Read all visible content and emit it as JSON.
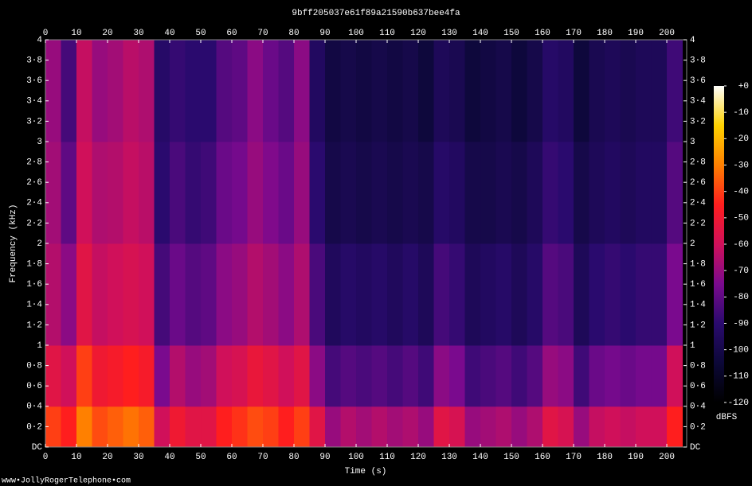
{
  "chart_data": {
    "type": "heatmap",
    "title": "9bff205037e61f89a21590b637bee4fa",
    "xlabel": "Time (s)",
    "ylabel": "Frequency (kHz)",
    "colorbar_label": "dBFS",
    "footer": "www•JollyRogerTelephone•com",
    "xlim": [
      0,
      206.4
    ],
    "ylim": [
      0,
      4
    ],
    "clim": [
      -120,
      0
    ],
    "xticks": [
      0,
      10,
      20,
      30,
      40,
      50,
      60,
      70,
      80,
      90,
      100,
      110,
      120,
      130,
      140,
      150,
      160,
      170,
      180,
      190,
      200
    ],
    "yticks": [
      {
        "value": 0,
        "label": "DC"
      },
      {
        "value": 0.2,
        "label": "0·2"
      },
      {
        "value": 0.4,
        "label": "0·4"
      },
      {
        "value": 0.6,
        "label": "0·6"
      },
      {
        "value": 0.8,
        "label": "0·8"
      },
      1,
      {
        "value": 1.2,
        "label": "1·2"
      },
      {
        "value": 1.4,
        "label": "1·4"
      },
      {
        "value": 1.6,
        "label": "1·6"
      },
      {
        "value": 1.8,
        "label": "1·8"
      },
      2,
      {
        "value": 2.2,
        "label": "2·2"
      },
      {
        "value": 2.4,
        "label": "2·4"
      },
      {
        "value": 2.6,
        "label": "2·6"
      },
      {
        "value": 2.8,
        "label": "2·8"
      },
      3,
      {
        "value": 3.2,
        "label": "3·2"
      },
      {
        "value": 3.4,
        "label": "3·4"
      },
      {
        "value": 3.6,
        "label": "3·6"
      },
      {
        "value": 3.8,
        "label": "3·8"
      },
      4
    ],
    "cticks": [
      {
        "value": 0,
        "label": "+0"
      },
      -10,
      -20,
      -30,
      -40,
      -50,
      -60,
      -70,
      -80,
      -90,
      -100,
      -110,
      -120
    ],
    "colorscale": [
      "#000000",
      "#0c0838",
      "#2a0a6e",
      "#7a0a8e",
      "#d0105a",
      "#ff1e1e",
      "#ff8000",
      "#ffd200",
      "#ffffff"
    ],
    "x_bins": [
      0,
      5,
      10,
      15,
      20,
      25,
      30,
      35,
      40,
      45,
      50,
      55,
      60,
      65,
      70,
      75,
      80,
      85,
      90,
      95,
      100,
      105,
      110,
      115,
      120,
      125,
      130,
      135,
      140,
      145,
      150,
      155,
      160,
      165,
      170,
      175,
      180,
      185,
      190,
      195,
      200,
      205
    ],
    "y_bins": [
      0,
      0.4,
      1,
      2,
      3,
      4
    ],
    "z": [
      [
        -40,
        -55,
        -65,
        -68,
        -70
      ],
      [
        -45,
        -60,
        -72,
        -80,
        -85
      ],
      [
        -30,
        -40,
        -55,
        -60,
        -62
      ],
      [
        -38,
        -50,
        -62,
        -66,
        -70
      ],
      [
        -35,
        -48,
        -60,
        -65,
        -68
      ],
      [
        -32,
        -45,
        -58,
        -62,
        -64
      ],
      [
        -35,
        -48,
        -60,
        -64,
        -66
      ],
      [
        -60,
        -75,
        -85,
        -90,
        -92
      ],
      [
        -50,
        -65,
        -78,
        -84,
        -88
      ],
      [
        -55,
        -70,
        -82,
        -88,
        -90
      ],
      [
        -55,
        -68,
        -80,
        -86,
        -90
      ],
      [
        -45,
        -60,
        -72,
        -78,
        -82
      ],
      [
        -42,
        -58,
        -70,
        -76,
        -80
      ],
      [
        -38,
        -52,
        -65,
        -70,
        -72
      ],
      [
        -40,
        -55,
        -68,
        -74,
        -78
      ],
      [
        -45,
        -60,
        -72,
        -78,
        -82
      ],
      [
        -40,
        -55,
        -66,
        -70,
        -72
      ],
      [
        -55,
        -72,
        -84,
        -90,
        -94
      ],
      [
        -70,
        -85,
        -95,
        -100,
        -102
      ],
      [
        -65,
        -82,
        -92,
        -98,
        -100
      ],
      [
        -68,
        -84,
        -94,
        -100,
        -102
      ],
      [
        -65,
        -82,
        -92,
        -98,
        -100
      ],
      [
        -68,
        -85,
        -95,
        -100,
        -102
      ],
      [
        -66,
        -82,
        -92,
        -98,
        -100
      ],
      [
        -70,
        -86,
        -96,
        -100,
        -104
      ],
      [
        -55,
        -72,
        -85,
        -92,
        -96
      ],
      [
        -58,
        -75,
        -88,
        -94,
        -98
      ],
      [
        -70,
        -86,
        -96,
        -100,
        -104
      ],
      [
        -68,
        -84,
        -94,
        -100,
        -102
      ],
      [
        -66,
        -82,
        -92,
        -98,
        -100
      ],
      [
        -70,
        -86,
        -96,
        -100,
        -104
      ],
      [
        -66,
        -82,
        -92,
        -96,
        -100
      ],
      [
        -55,
        -70,
        -82,
        -88,
        -92
      ],
      [
        -58,
        -72,
        -84,
        -90,
        -94
      ],
      [
        -70,
        -86,
        -96,
        -100,
        -104
      ],
      [
        -62,
        -78,
        -90,
        -96,
        -98
      ],
      [
        -60,
        -76,
        -88,
        -94,
        -96
      ],
      [
        -62,
        -78,
        -90,
        -96,
        -98
      ],
      [
        -60,
        -76,
        -88,
        -94,
        -96
      ],
      [
        -60,
        -76,
        -88,
        -94,
        -96
      ],
      [
        -45,
        -60,
        -75,
        -82,
        -86
      ]
    ]
  }
}
